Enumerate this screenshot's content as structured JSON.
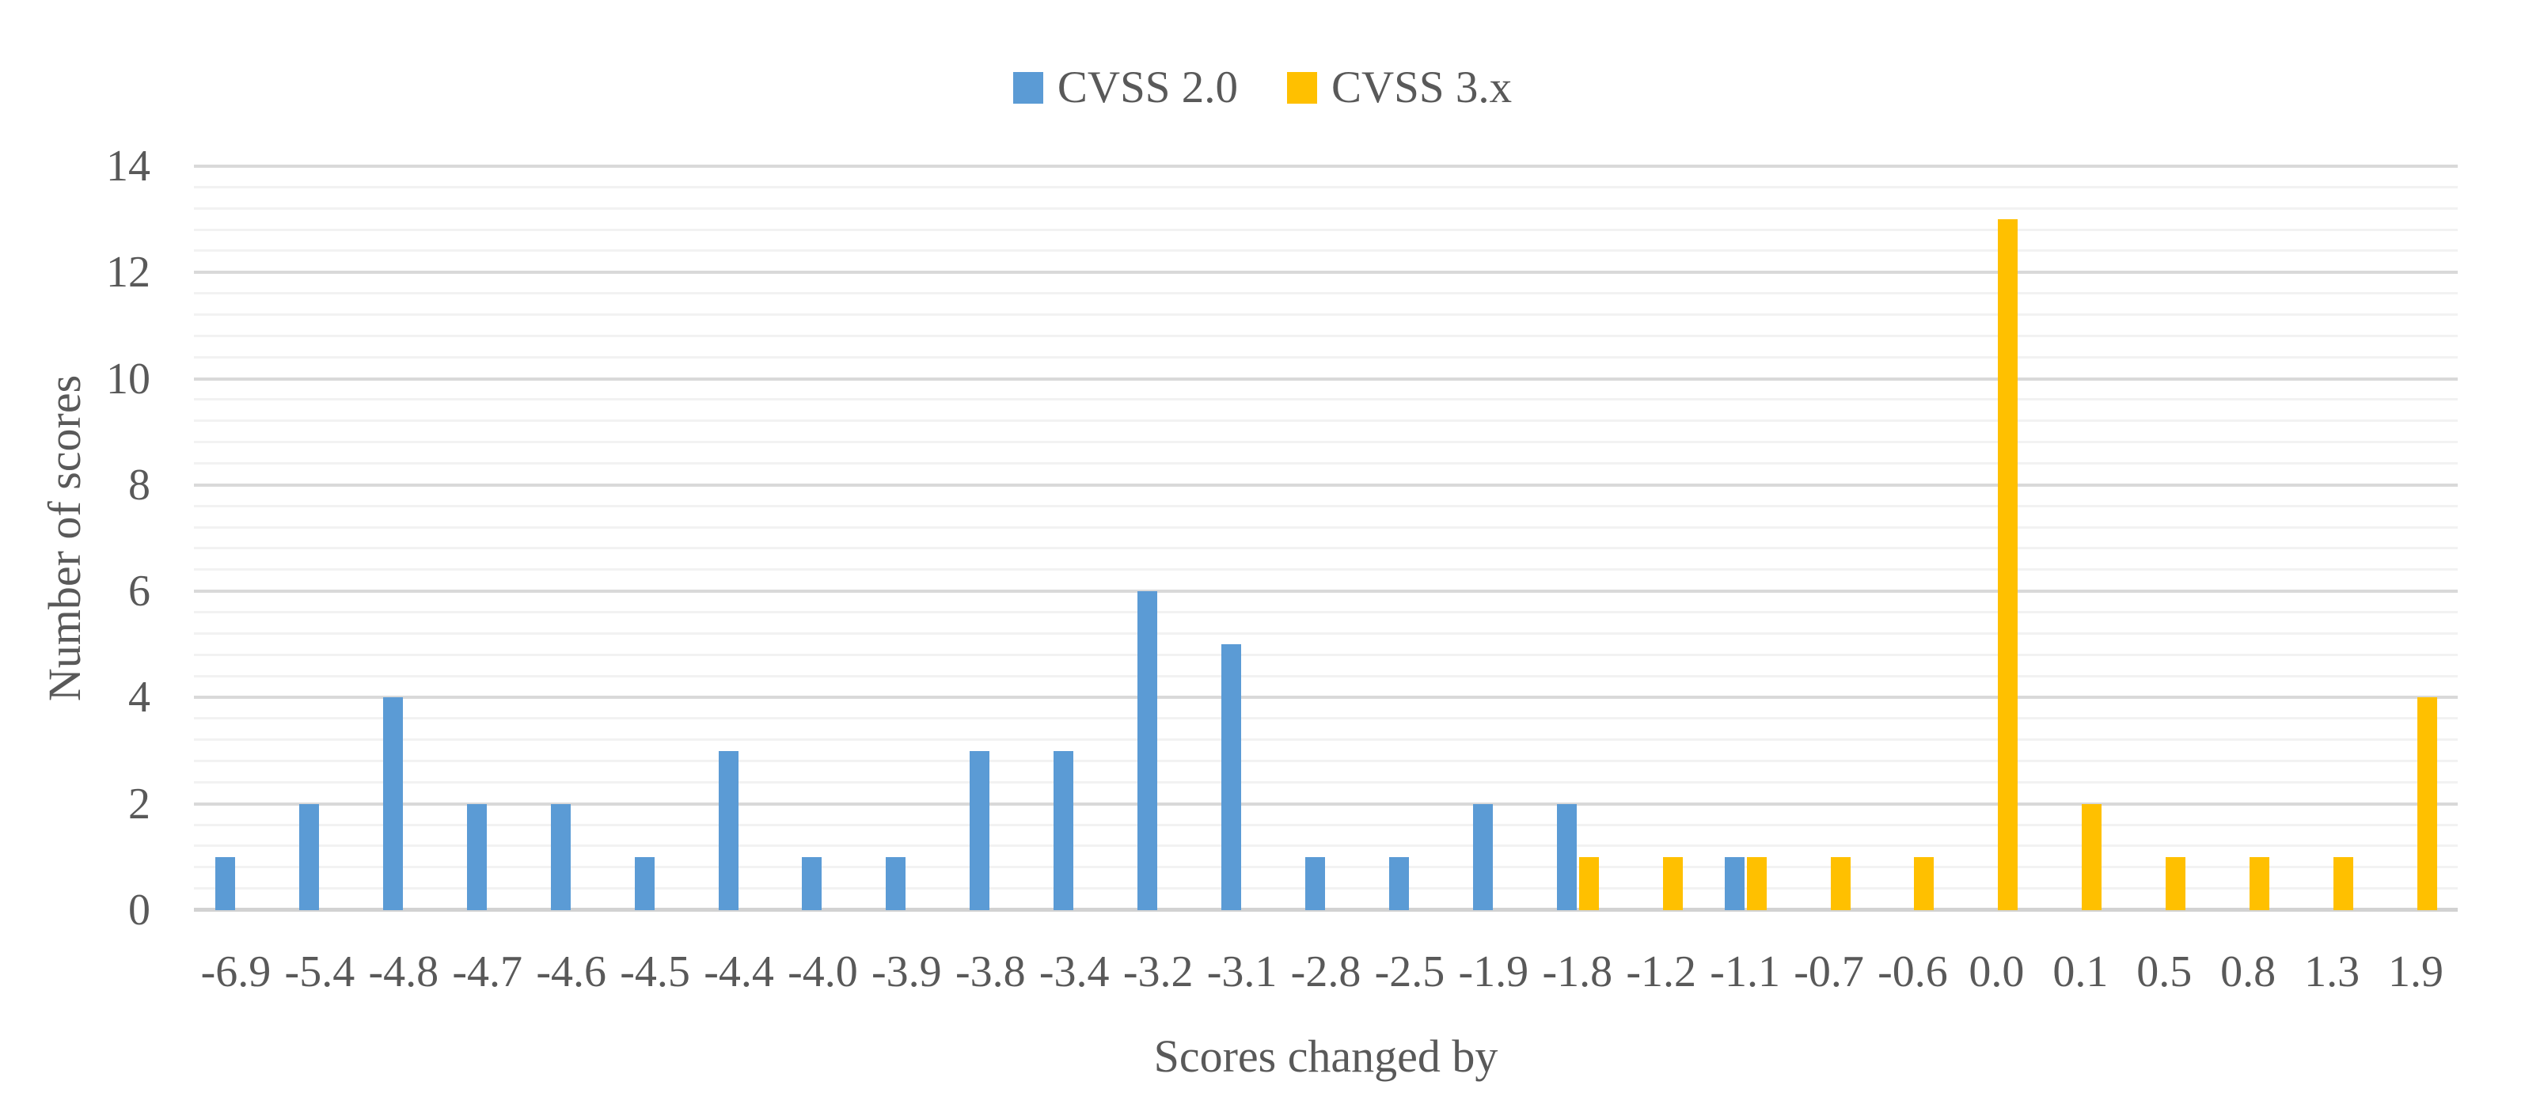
{
  "figure": {
    "background": "#FFFFFF",
    "text_color": "#595959",
    "minor_gridline_color": "#F2F2F2",
    "major_gridline_color": "#D9D9D9"
  },
  "chart_data": {
    "type": "bar",
    "title": "",
    "xlabel": "Scores changed by",
    "ylabel": "Number of scores",
    "categories": [
      "-6.9",
      "-5.4",
      "-4.8",
      "-4.7",
      "-4.6",
      "-4.5",
      "-4.4",
      "-4.0",
      "-3.9",
      "-3.8",
      "-3.4",
      "-3.2",
      "-3.1",
      "-2.8",
      "-2.5",
      "-1.9",
      "-1.8",
      "-1.2",
      "-1.1",
      "-0.7",
      "-0.6",
      "0.0",
      "0.1",
      "0.5",
      "0.8",
      "1.3",
      "1.9"
    ],
    "series": [
      {
        "name": "CVSS 2.0",
        "color": "#5B9BD5",
        "values": [
          1,
          2,
          4,
          2,
          2,
          1,
          3,
          1,
          1,
          3,
          3,
          6,
          5,
          1,
          1,
          2,
          2,
          0,
          1,
          0,
          0,
          0,
          0,
          0,
          0,
          0,
          0
        ]
      },
      {
        "name": "CVSS 3.x",
        "color": "#FFC000",
        "values": [
          0,
          0,
          0,
          0,
          0,
          0,
          0,
          0,
          0,
          0,
          0,
          0,
          0,
          0,
          0,
          0,
          1,
          1,
          1,
          1,
          1,
          13,
          2,
          1,
          1,
          1,
          4
        ]
      }
    ],
    "y_ticks": [
      0,
      2,
      4,
      6,
      8,
      10,
      12,
      14
    ],
    "ylim": [
      0,
      14
    ],
    "y_major_unit": 2,
    "y_minor_unit": 0.4,
    "gridlines": "major+minor horizontal",
    "legend_position": "top-center"
  }
}
